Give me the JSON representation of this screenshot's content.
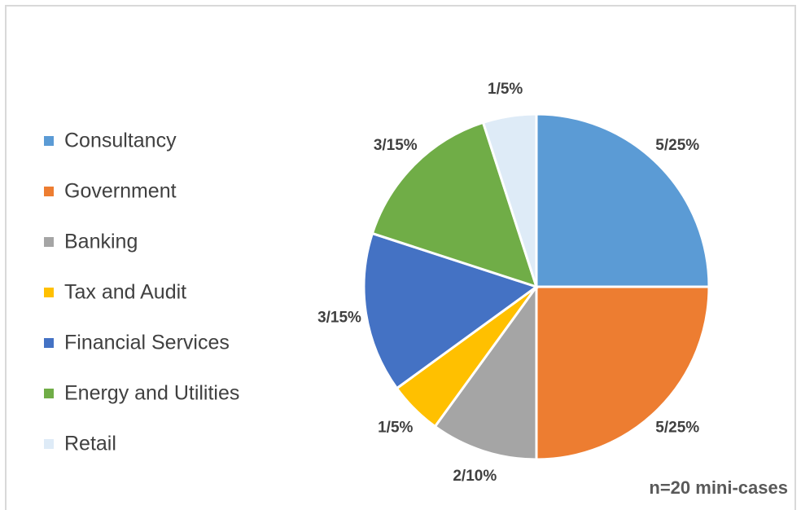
{
  "chart_data": {
    "type": "pie",
    "categories": [
      "Consultancy",
      "Government",
      "Banking",
      "Tax and Audit",
      "Financial Services",
      "Energy and Utilities",
      "Retail"
    ],
    "values": [
      5,
      5,
      2,
      1,
      3,
      3,
      1
    ],
    "value_labels": [
      "5/25%",
      "5/25%",
      "2/10%",
      "1/5%",
      "3/15%",
      "3/15%",
      "1/5%"
    ],
    "colors": [
      "#5b9bd5",
      "#ed7d31",
      "#a5a5a5",
      "#ffc000",
      "#4472c4",
      "#70ad47",
      "#deebf7"
    ],
    "legend": "left",
    "annotation": "n=20 mini-cases"
  }
}
